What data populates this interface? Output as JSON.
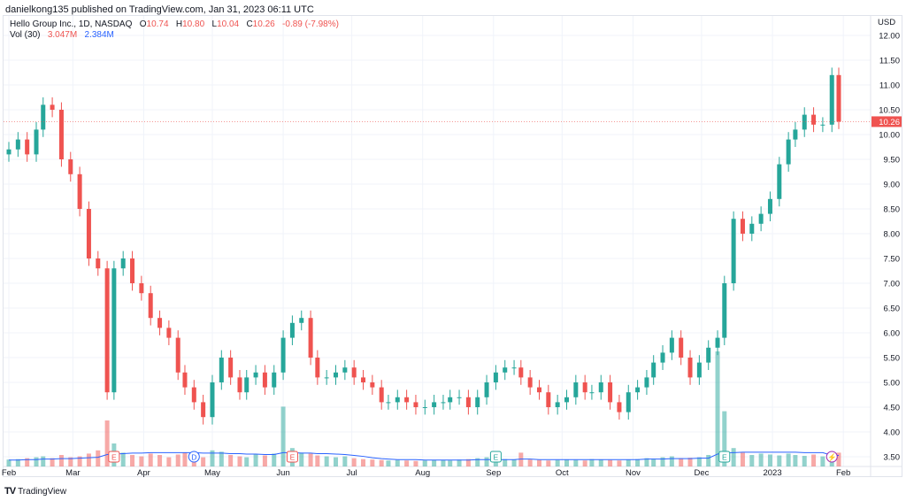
{
  "published": "danielkong135 published on TradingView.com, Jan 31, 2023 06:11 UTC",
  "legend": {
    "symbol": "Hello Group Inc., 1D, NASDAQ",
    "o_label": "O",
    "o": "10.74",
    "h_label": "H",
    "h": "10.80",
    "l_label": "L",
    "l": "10.04",
    "c_label": "C",
    "c": "10.26",
    "change": "-0.89 (-7.98%)",
    "vol_label": "Vol (30)",
    "vol": "3.047M",
    "vol_ma": "2.384M"
  },
  "branding": "TradingView",
  "colors": {
    "up": "#26a69a",
    "down": "#ef5350",
    "vol_ma": "#2962ff",
    "grid": "#f0f3fa"
  },
  "chart_data": {
    "type": "candlestick",
    "currency": "USD",
    "ylim": [
      3.5,
      12.0
    ],
    "yticks": [
      "12.00",
      "11.50",
      "11.00",
      "10.50",
      "10.00",
      "9.50",
      "9.00",
      "8.50",
      "8.00",
      "7.50",
      "7.00",
      "6.50",
      "6.00",
      "5.50",
      "5.00",
      "4.50",
      "4.00",
      "3.50"
    ],
    "last_price": "10.26",
    "xticks": [
      {
        "label": "Feb",
        "date": "2022-02-01"
      },
      {
        "label": "Mar",
        "date": "2022-03-01"
      },
      {
        "label": "Apr",
        "date": "2022-04-01"
      },
      {
        "label": "May",
        "date": "2022-05-01"
      },
      {
        "label": "Jun",
        "date": "2022-06-01"
      },
      {
        "label": "Jul",
        "date": "2022-07-01"
      },
      {
        "label": "Aug",
        "date": "2022-08-01"
      },
      {
        "label": "Sep",
        "date": "2022-09-01"
      },
      {
        "label": "Oct",
        "date": "2022-10-01"
      },
      {
        "label": "Nov",
        "date": "2022-11-01"
      },
      {
        "label": "Dec",
        "date": "2022-12-01"
      },
      {
        "label": "2023",
        "date": "2023-01-01"
      },
      {
        "label": "Feb",
        "date": "2023-02-01"
      }
    ],
    "dates": [
      "2022-02-01",
      "2022-02-05",
      "2022-02-09",
      "2022-02-13",
      "2022-02-16",
      "2022-02-20",
      "2022-02-24",
      "2022-02-28",
      "2022-03-04",
      "2022-03-08",
      "2022-03-12",
      "2022-03-16",
      "2022-03-19",
      "2022-03-23",
      "2022-03-27",
      "2022-03-31",
      "2022-04-04",
      "2022-04-08",
      "2022-04-12",
      "2022-04-16",
      "2022-04-19",
      "2022-04-23",
      "2022-04-27",
      "2022-05-01",
      "2022-05-05",
      "2022-05-09",
      "2022-05-13",
      "2022-05-16",
      "2022-05-20",
      "2022-05-24",
      "2022-05-28",
      "2022-06-01",
      "2022-06-05",
      "2022-06-09",
      "2022-06-13",
      "2022-06-16",
      "2022-06-20",
      "2022-06-24",
      "2022-06-28",
      "2022-07-02",
      "2022-07-06",
      "2022-07-10",
      "2022-07-14",
      "2022-07-17",
      "2022-07-21",
      "2022-07-25",
      "2022-07-29",
      "2022-08-02",
      "2022-08-06",
      "2022-08-10",
      "2022-08-13",
      "2022-08-17",
      "2022-08-21",
      "2022-08-25",
      "2022-08-29",
      "2022-09-02",
      "2022-09-06",
      "2022-09-10",
      "2022-09-13",
      "2022-09-17",
      "2022-09-21",
      "2022-09-25",
      "2022-09-29",
      "2022-10-03",
      "2022-10-07",
      "2022-10-11",
      "2022-10-14",
      "2022-10-18",
      "2022-10-22",
      "2022-10-26",
      "2022-10-30",
      "2022-11-03",
      "2022-11-07",
      "2022-11-10",
      "2022-11-14",
      "2022-11-18",
      "2022-11-22",
      "2022-11-26",
      "2022-11-30",
      "2022-12-04",
      "2022-12-08",
      "2022-12-11",
      "2022-12-15",
      "2022-12-19",
      "2022-12-23",
      "2022-12-27",
      "2022-12-31",
      "2023-01-04",
      "2023-01-08",
      "2023-01-11",
      "2023-01-15",
      "2023-01-19",
      "2023-01-23",
      "2023-01-27",
      "2023-01-30"
    ],
    "close": [
      9.7,
      9.9,
      9.6,
      10.1,
      10.6,
      10.5,
      9.5,
      9.2,
      8.5,
      7.5,
      7.3,
      4.8,
      7.3,
      7.5,
      7.0,
      6.8,
      6.3,
      6.1,
      5.9,
      5.2,
      4.9,
      4.6,
      4.3,
      5.0,
      5.5,
      5.1,
      4.8,
      5.1,
      5.2,
      4.9,
      5.2,
      5.9,
      6.2,
      6.3,
      5.5,
      5.1,
      5.1,
      5.2,
      5.3,
      5.1,
      5.0,
      4.9,
      4.6,
      4.6,
      4.7,
      4.6,
      4.5,
      4.5,
      4.6,
      4.6,
      4.7,
      4.7,
      4.5,
      4.7,
      5.0,
      5.2,
      5.3,
      5.3,
      5.1,
      4.9,
      4.8,
      4.5,
      4.6,
      4.7,
      5.0,
      4.8,
      4.8,
      5.0,
      4.6,
      4.4,
      4.8,
      4.9,
      5.1,
      5.4,
      5.6,
      5.9,
      5.5,
      5.1,
      5.4,
      5.7,
      5.9,
      7.0,
      8.3,
      8.0,
      8.2,
      8.4,
      8.7,
      9.4,
      9.9,
      10.1,
      10.4,
      10.2,
      10.2,
      11.2,
      10.26
    ],
    "volume_millions": [
      1.5,
      1.6,
      1.8,
      2.0,
      2.2,
      1.8,
      2.5,
      2.0,
      2.2,
      2.8,
      3.5,
      10,
      5,
      3,
      2.5,
      2.2,
      2.8,
      2.5,
      2.0,
      2.6,
      3.0,
      2.4,
      2.0,
      3.5,
      3.2,
      2.5,
      2.2,
      2.0,
      2.6,
      2.4,
      2.8,
      13,
      4,
      3,
      2.8,
      2.4,
      2.2,
      2.0,
      2.2,
      1.8,
      1.6,
      1.5,
      1.4,
      1.3,
      1.4,
      1.3,
      1.2,
      1.3,
      1.4,
      1.4,
      1.3,
      1.5,
      1.6,
      1.8,
      2.0,
      2.2,
      1.6,
      1.5,
      3.0,
      1.5,
      1.4,
      1.3,
      1.4,
      1.5,
      1.4,
      1.3,
      1.6,
      1.5,
      1.4,
      1.3,
      1.5,
      1.6,
      1.8,
      1.7,
      2.0,
      2.2,
      1.8,
      1.9,
      2.0,
      2.5,
      25,
      12,
      4,
      3,
      2.5,
      2.8,
      2.6,
      2.4,
      2.8,
      2.5,
      2.3,
      2.6,
      2.2,
      2.0,
      3.0
    ],
    "volume_ma_millions": [
      1.4,
      1.4,
      1.5,
      1.5,
      1.6,
      1.6,
      1.7,
      1.7,
      1.8,
      1.9,
      2.0,
      2.6,
      2.7,
      2.8,
      2.9,
      2.9,
      3.0,
      3.0,
      3.0,
      3.0,
      3.0,
      3.0,
      2.9,
      2.9,
      2.9,
      2.8,
      2.8,
      2.7,
      2.7,
      2.6,
      2.6,
      3.0,
      3.0,
      2.9,
      2.9,
      2.8,
      2.8,
      2.7,
      2.6,
      2.4,
      2.2,
      1.9,
      1.7,
      1.6,
      1.5,
      1.5,
      1.5,
      1.4,
      1.4,
      1.4,
      1.4,
      1.4,
      1.4,
      1.5,
      1.5,
      1.5,
      1.5,
      1.5,
      1.6,
      1.6,
      1.5,
      1.5,
      1.5,
      1.5,
      1.5,
      1.5,
      1.5,
      1.5,
      1.5,
      1.5,
      1.5,
      1.5,
      1.6,
      1.6,
      1.6,
      1.7,
      1.7,
      1.7,
      1.8,
      1.8,
      2.7,
      3.0,
      3.0,
      3.1,
      3.1,
      3.1,
      3.1,
      3.1,
      3.1,
      3.1,
      3.0,
      3.0,
      3.0,
      2.4,
      2.4
    ],
    "events": [
      {
        "label": "E",
        "date": "2022-03-19",
        "color": "#ef5350"
      },
      {
        "label": "D",
        "date": "2022-04-23",
        "color": "#2962ff"
      },
      {
        "label": "E",
        "date": "2022-06-05",
        "color": "#ef5350"
      },
      {
        "label": "E",
        "date": "2022-09-02",
        "color": "#26a69a"
      },
      {
        "label": "E",
        "date": "2022-12-11",
        "color": "#26a69a"
      },
      {
        "label": "⚡",
        "date": "2023-01-27",
        "color": "#9c27b0"
      }
    ]
  }
}
